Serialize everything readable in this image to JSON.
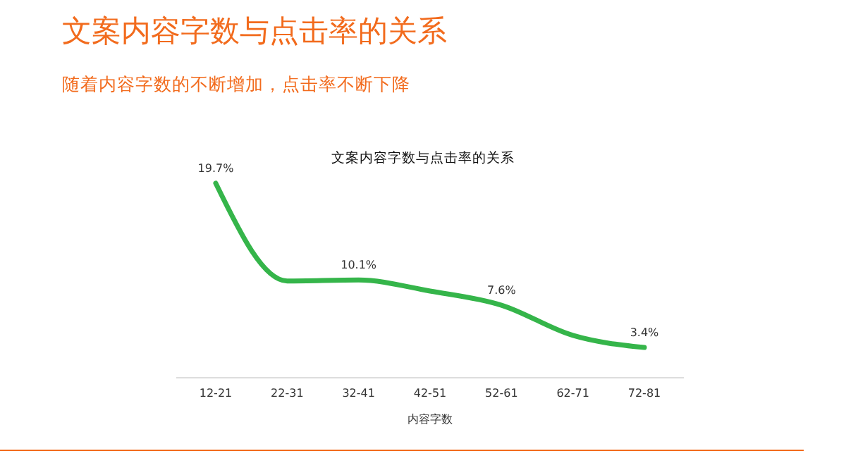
{
  "chart_data": {
    "type": "line",
    "title": "文案内容字数与点击率的关系",
    "subtitle": "随着内容字数的不断增加，点击率不断下降",
    "annotations": [
      "文案内容字数与点击率的关系"
    ],
    "xlabel": "内容字数",
    "categories": [
      "12-21",
      "22-31",
      "32-41",
      "42-51",
      "52-61",
      "62-71",
      "72-81"
    ],
    "series": [
      {
        "color": "#35b54a",
        "values": [
          19.7,
          10.0,
          10.1,
          9.0,
          7.6,
          4.6,
          3.4
        ],
        "value_labels": [
          "19.7%",
          null,
          "10.1%",
          null,
          "7.6%",
          null,
          "3.4%"
        ]
      }
    ],
    "marker": "none",
    "line_style": "solid",
    "tick_labels": "x"
  }
}
